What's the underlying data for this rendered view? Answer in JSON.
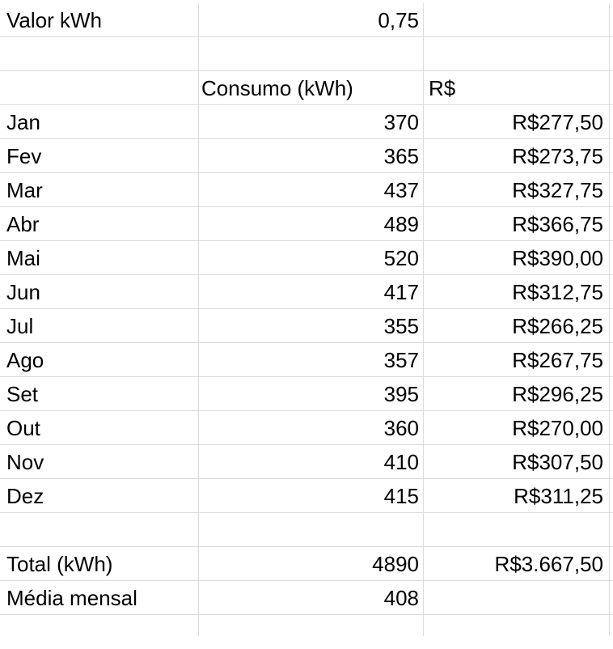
{
  "header": {
    "label": "Valor kWh",
    "value": "0,75"
  },
  "columns": {
    "consumo": "Consumo (kWh)",
    "reais": "R$"
  },
  "months": [
    {
      "month": "Jan",
      "kwh": "370",
      "brl": "R$277,50"
    },
    {
      "month": "Fev",
      "kwh": "365",
      "brl": "R$273,75"
    },
    {
      "month": "Mar",
      "kwh": "437",
      "brl": "R$327,75"
    },
    {
      "month": "Abr",
      "kwh": "489",
      "brl": "R$366,75"
    },
    {
      "month": "Mai",
      "kwh": "520",
      "brl": "R$390,00"
    },
    {
      "month": "Jun",
      "kwh": "417",
      "brl": "R$312,75"
    },
    {
      "month": "Jul",
      "kwh": "355",
      "brl": "R$266,25"
    },
    {
      "month": "Ago",
      "kwh": "357",
      "brl": "R$267,75"
    },
    {
      "month": "Set",
      "kwh": "395",
      "brl": "R$296,25"
    },
    {
      "month": "Out",
      "kwh": "360",
      "brl": "R$270,00"
    },
    {
      "month": "Nov",
      "kwh": "410",
      "brl": "R$307,50"
    },
    {
      "month": "Dez",
      "kwh": "415",
      "brl": "R$311,25"
    }
  ],
  "total": {
    "label": "Total (kWh)",
    "kwh": "4890",
    "brl": "R$3.667,50"
  },
  "average": {
    "label": "Média mensal",
    "kwh": "408"
  }
}
